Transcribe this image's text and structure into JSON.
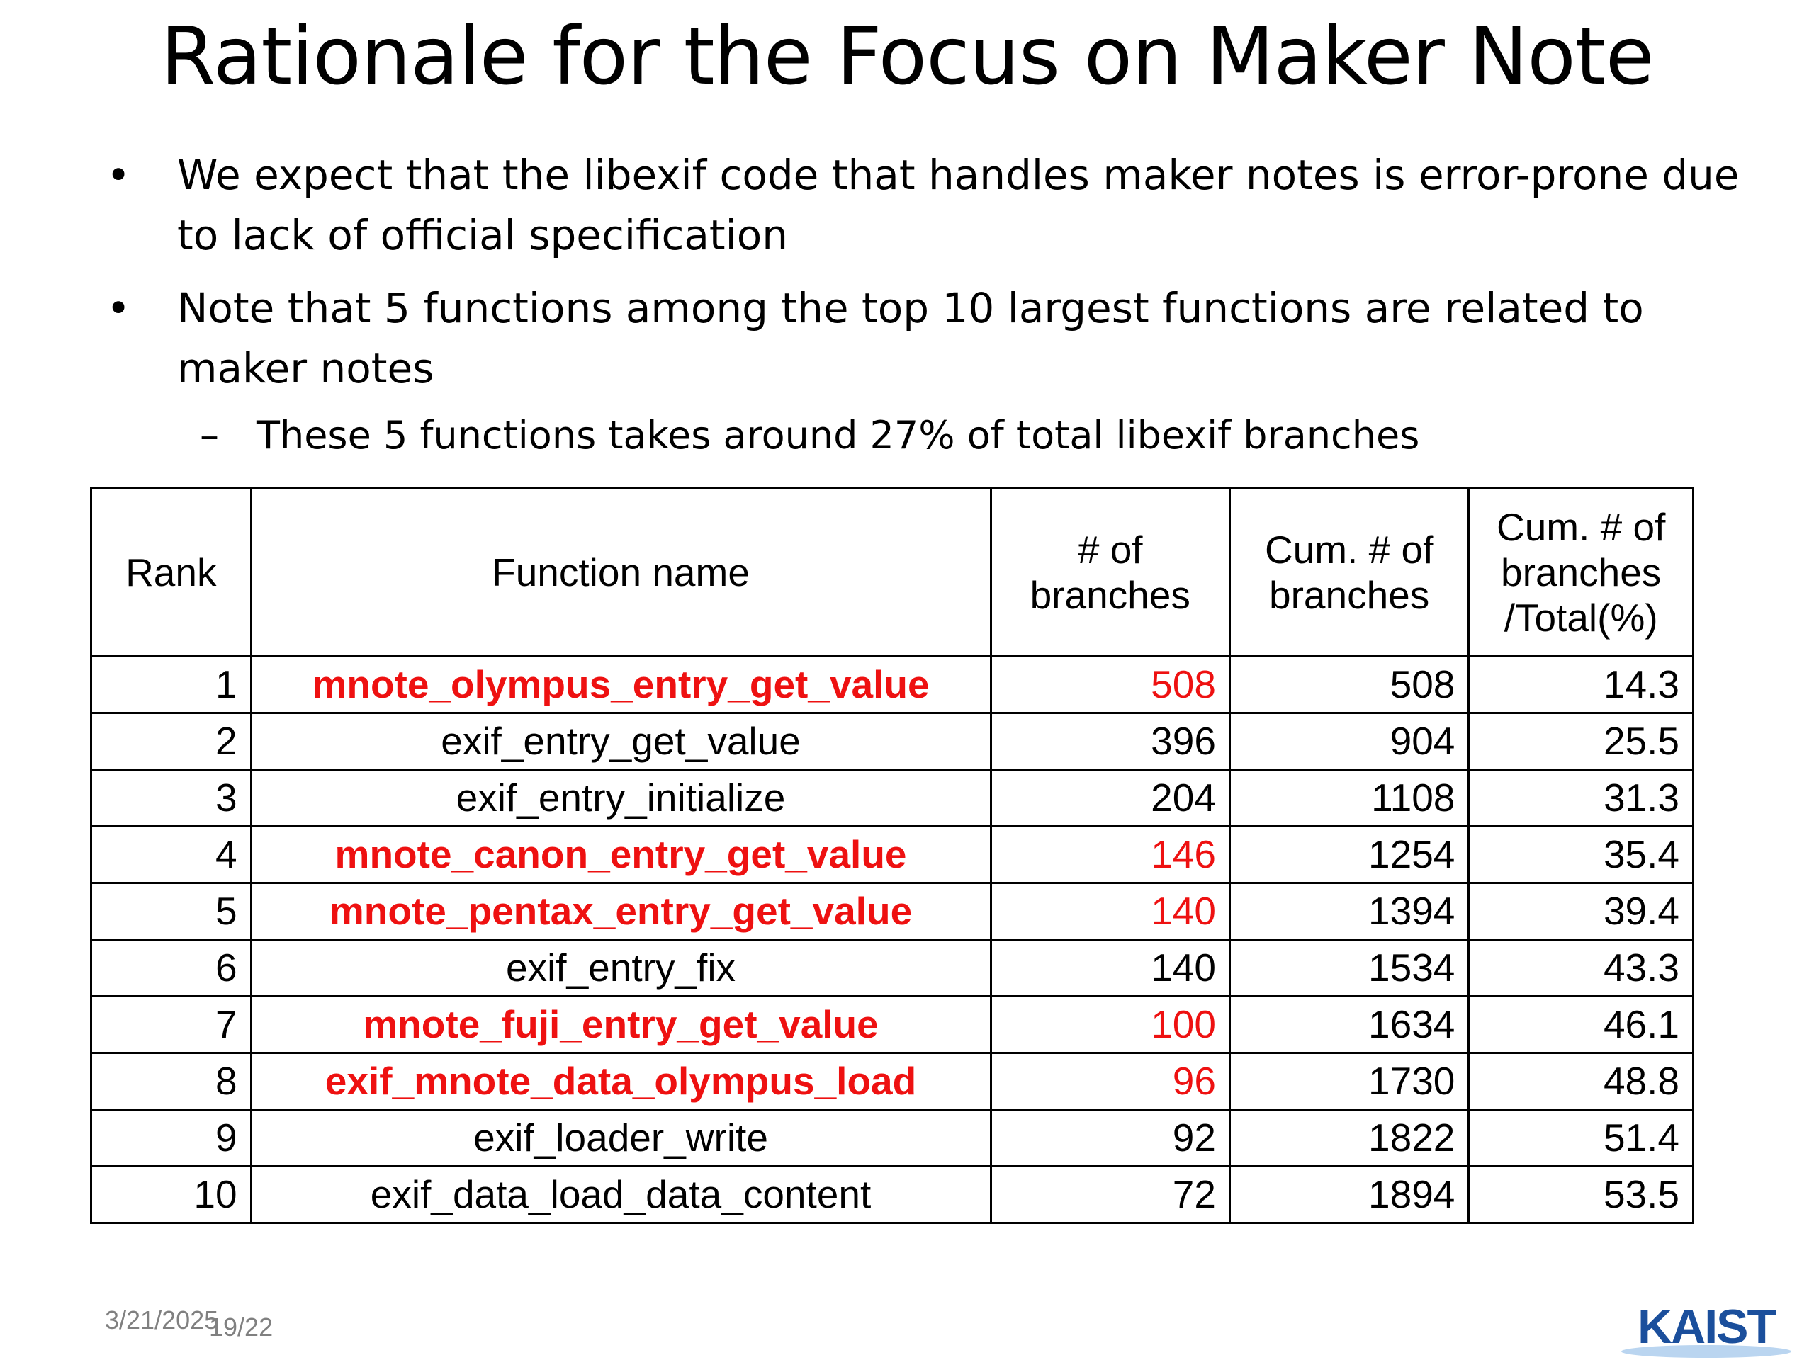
{
  "title": "Rationale for the Focus on Maker Note",
  "bullets": [
    "We expect that the libexif code that handles maker notes is error-prone due to lack of official specification",
    "Note that 5 functions among the top 10 largest functions are related to maker notes"
  ],
  "sub_bullet": "These 5 functions takes around 27% of total libexif branches",
  "bullet_marker": "•",
  "sub_marker": "–",
  "table": {
    "headers": [
      "Rank",
      "Function name",
      "# of branches",
      "Cum. # of branches",
      "Cum. # of branches /Total(%)"
    ],
    "rows": [
      {
        "rank": "1",
        "name": "mnote_olympus_entry_get_value",
        "branches": "508",
        "cum": "508",
        "pct": "14.3",
        "highlight": true
      },
      {
        "rank": "2",
        "name": "exif_entry_get_value",
        "branches": "396",
        "cum": "904",
        "pct": "25.5",
        "highlight": false
      },
      {
        "rank": "3",
        "name": "exif_entry_initialize",
        "branches": "204",
        "cum": "1108",
        "pct": "31.3",
        "highlight": false
      },
      {
        "rank": "4",
        "name": "mnote_canon_entry_get_value",
        "branches": "146",
        "cum": "1254",
        "pct": "35.4",
        "highlight": true
      },
      {
        "rank": "5",
        "name": "mnote_pentax_entry_get_value",
        "branches": "140",
        "cum": "1394",
        "pct": "39.4",
        "highlight": true
      },
      {
        "rank": "6",
        "name": "exif_entry_fix",
        "branches": "140",
        "cum": "1534",
        "pct": "43.3",
        "highlight": false
      },
      {
        "rank": "7",
        "name": "mnote_fuji_entry_get_value",
        "branches": "100",
        "cum": "1634",
        "pct": "46.1",
        "highlight": true
      },
      {
        "rank": "8",
        "name": "exif_mnote_data_olympus_load",
        "branches": "96",
        "cum": "1730",
        "pct": "48.8",
        "highlight": true
      },
      {
        "rank": "9",
        "name": "exif_loader_write",
        "branches": "92",
        "cum": "1822",
        "pct": "51.4",
        "highlight": false
      },
      {
        "rank": "10",
        "name": "exif_data_load_data_content",
        "branches": "72",
        "cum": "1894",
        "pct": "53.5",
        "highlight": false
      }
    ]
  },
  "footer": {
    "date": "3/21/2025",
    "page": "19/22"
  },
  "logo": {
    "text": "KAIST",
    "color": "#1b4f9c"
  },
  "colors": {
    "highlight": "#ee1111",
    "footer_text": "#808080"
  }
}
